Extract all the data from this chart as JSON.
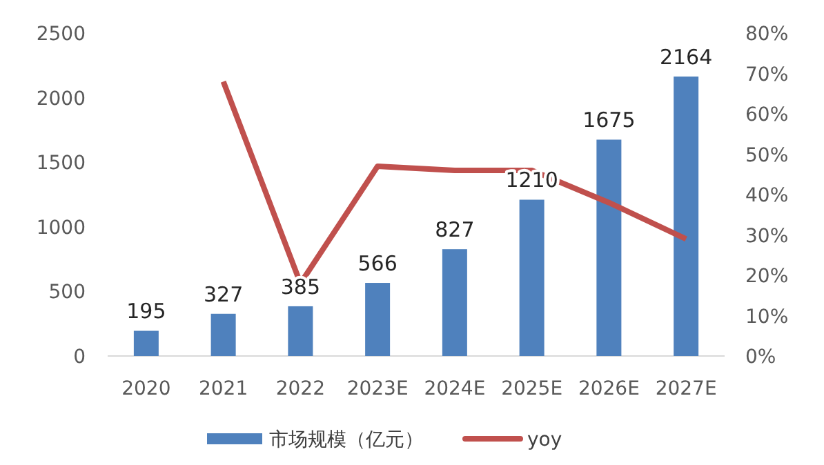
{
  "chart_data": {
    "type": "bar",
    "categories": [
      "2020",
      "2021",
      "2022",
      "2023E",
      "2024E",
      "2025E",
      "2026E",
      "2027E"
    ],
    "series": [
      {
        "name": "市场规模（亿元）",
        "color": "#4f81bd",
        "values": [
          195,
          327,
          385,
          566,
          827,
          1210,
          1675,
          2164
        ],
        "value_labels": [
          "195",
          "327",
          "385",
          "566",
          "827",
          "1210",
          "1675",
          "2164"
        ]
      },
      {
        "name": "yoy",
        "type": "line",
        "axis": "y2",
        "color": "#c0504d",
        "values": [
          null,
          68,
          18,
          47,
          46,
          46,
          38,
          29
        ]
      }
    ],
    "ylim": [
      0,
      2500
    ],
    "yticks": [
      0,
      500,
      1000,
      1500,
      2000,
      2500
    ],
    "y2lim": [
      0,
      80
    ],
    "y2ticks": [
      {
        "value": 0,
        "label": "0%"
      },
      {
        "value": 10,
        "label": "10%"
      },
      {
        "value": 20,
        "label": "20%"
      },
      {
        "value": 30,
        "label": "30%"
      },
      {
        "value": 40,
        "label": "40%"
      },
      {
        "value": 50,
        "label": "50%"
      },
      {
        "value": 60,
        "label": "60%"
      },
      {
        "value": 70,
        "label": "70%"
      },
      {
        "value": 80,
        "label": "80%"
      }
    ],
    "legend": "bottom"
  }
}
